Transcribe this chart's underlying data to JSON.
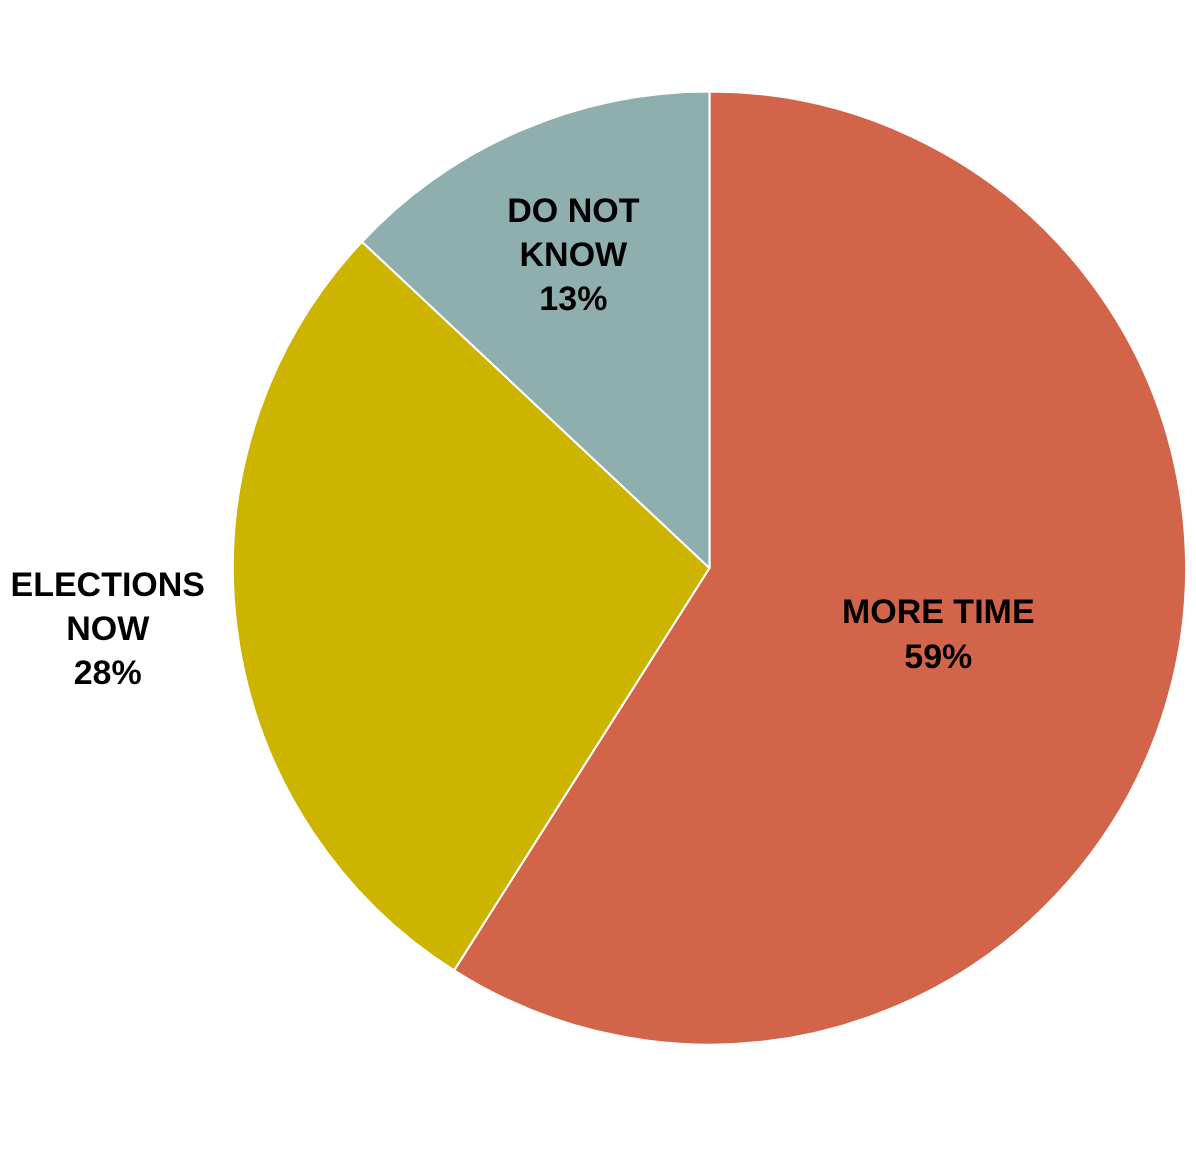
{
  "chart_data": {
    "type": "pie",
    "categories": [
      "MORE TIME",
      "ELECTIONS NOW",
      "DO NOT KNOW"
    ],
    "values": [
      59,
      28,
      13
    ],
    "colors": [
      "#d2644a",
      "#ccb400",
      "#8fafaf"
    ],
    "value_labels": [
      "59%",
      "28%",
      "13%"
    ],
    "legend": false
  }
}
